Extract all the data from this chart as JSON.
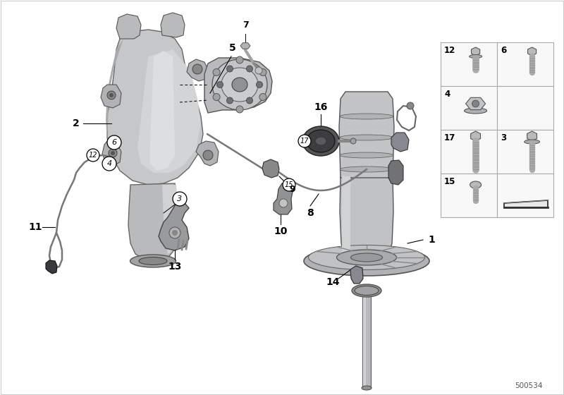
{
  "bg_color": "#ffffff",
  "diagram_id": "500534",
  "label_color": "#000000",
  "knuckle_color": "#c0c2c4",
  "knuckle_highlight": "#d8dadc",
  "knuckle_shadow": "#a0a2a4",
  "hub_color": "#b0b2b4",
  "strut_color": "#b8babb",
  "strut_dark": "#8a8c8e",
  "grid_border": "#999999",
  "cable_color": "#888888",
  "fastener_color": "#b0b2b4"
}
